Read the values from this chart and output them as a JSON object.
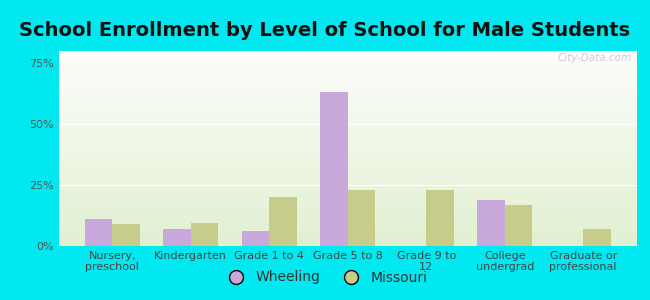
{
  "title": "School Enrollment by Level of School for Male Students",
  "categories": [
    "Nursery,\npreschool",
    "Kindergarten",
    "Grade 1 to 4",
    "Grade 5 to 8",
    "Grade 9 to\n12",
    "College\nundergrad",
    "Graduate or\nprofessional"
  ],
  "wheeling": [
    11.0,
    7.0,
    6.0,
    63.0,
    0.0,
    19.0,
    0.0
  ],
  "missouri": [
    9.0,
    9.5,
    20.0,
    23.0,
    23.0,
    17.0,
    7.0
  ],
  "wheeling_color": "#c9a8dc",
  "missouri_color": "#c8cc8a",
  "background_outer": "#00e8f0",
  "ylim": [
    0,
    80
  ],
  "yticks": [
    0,
    25,
    50,
    75
  ],
  "ytick_labels": [
    "0%",
    "25%",
    "50%",
    "75%"
  ],
  "title_fontsize": 14,
  "tick_fontsize": 8,
  "legend_fontsize": 10,
  "bar_width": 0.35,
  "watermark": "City-Data.com"
}
